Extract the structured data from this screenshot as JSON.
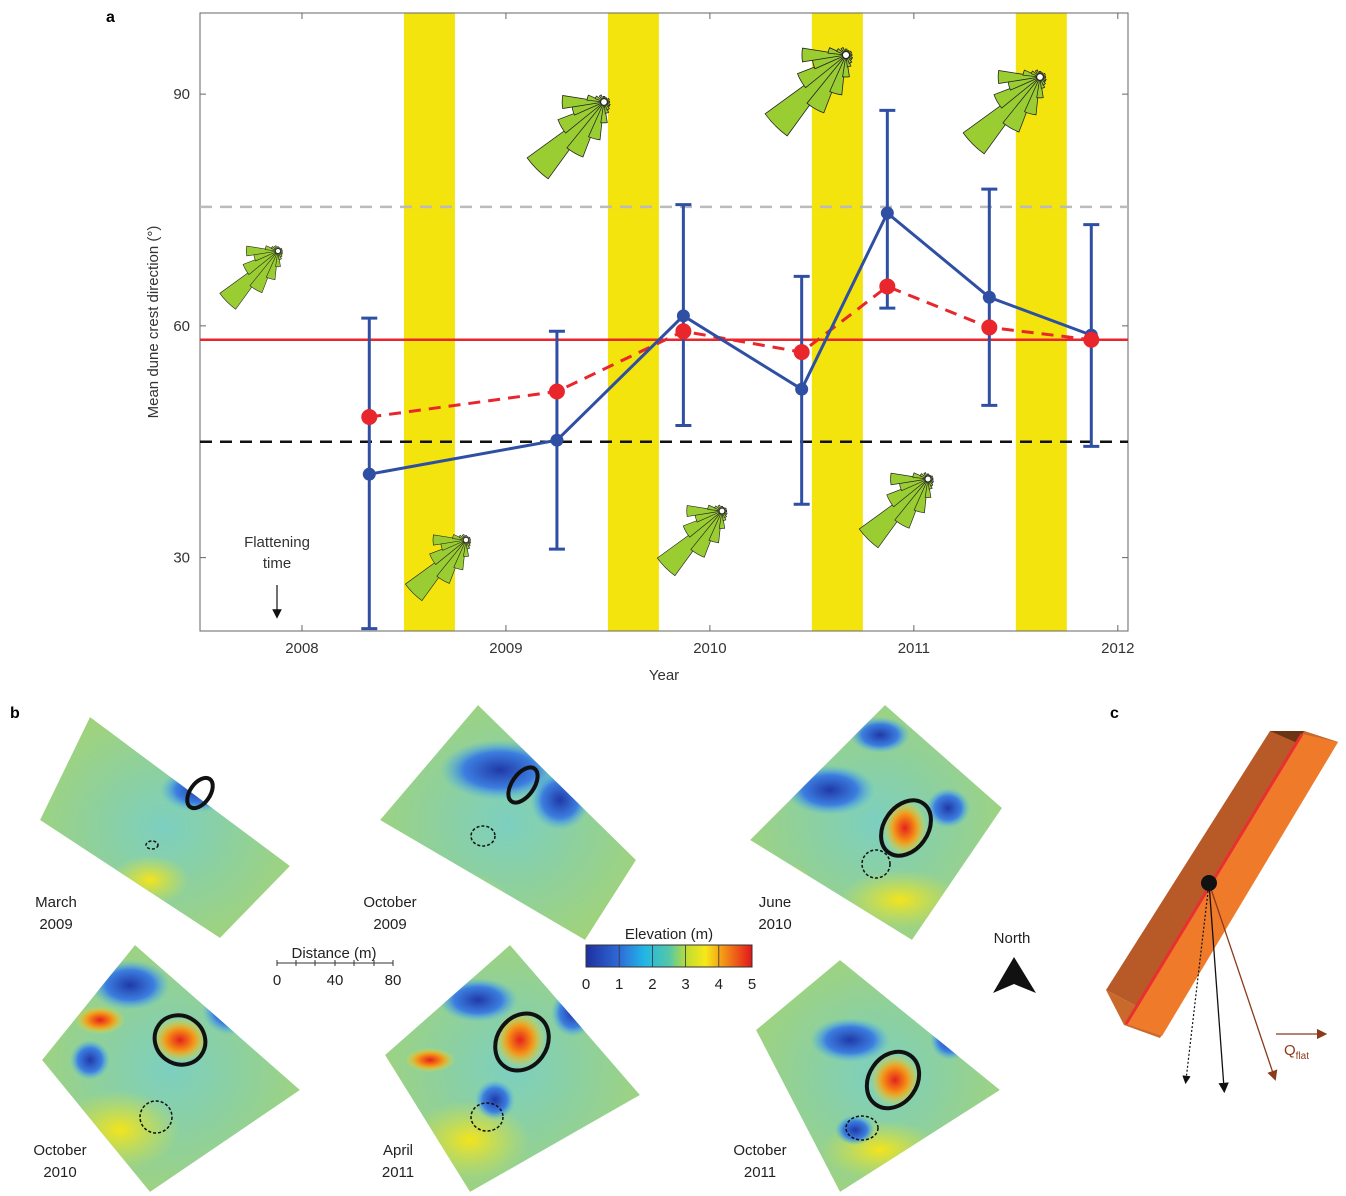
{
  "panel_labels": {
    "a": "a",
    "b": "b",
    "c": "c"
  },
  "chart_data": {
    "type": "line",
    "xlabel": "Year",
    "ylabel": "Mean dune crest direction (°)",
    "xlim": [
      2007.5,
      2012.05
    ],
    "ylim": [
      20.5,
      100.5
    ],
    "x_ticks": [
      "2008",
      "2009",
      "2010",
      "2011",
      "2012"
    ],
    "y_ticks": [
      "30",
      "60",
      "90"
    ],
    "grid": false,
    "series": [
      {
        "style": "solid blue line with error bars",
        "color": "#2e4fa3",
        "x": [
          2008.33,
          2009.25,
          2009.87,
          2010.45,
          2010.87,
          2011.37,
          2011.87
        ],
        "y": [
          40.8,
          45.2,
          61.3,
          51.8,
          74.6,
          63.7,
          58.8
        ],
        "err_low": [
          20.8,
          31.1,
          47.1,
          36.9,
          62.3,
          49.7,
          44.4
        ],
        "err_high": [
          61.0,
          59.3,
          75.7,
          66.4,
          87.9,
          77.7,
          73.1
        ]
      },
      {
        "style": "dashed red line",
        "color": "#e8262c",
        "x": [
          2008.33,
          2009.25,
          2009.87,
          2010.45,
          2010.87,
          2011.37,
          2011.87
        ],
        "y": [
          48.2,
          51.5,
          59.3,
          56.6,
          65.1,
          59.8,
          58.2
        ]
      }
    ],
    "reference_lines": [
      {
        "y": 58.2,
        "style": "solid",
        "color": "#e8262c"
      },
      {
        "y": 45.0,
        "style": "dashed",
        "color": "#111111"
      },
      {
        "y": 75.4,
        "style": "dashed",
        "color": "#bbbbbb"
      }
    ],
    "shaded_bands": [
      [
        2008.5,
        2008.75
      ],
      [
        2009.5,
        2009.75
      ],
      [
        2010.5,
        2010.75
      ],
      [
        2011.5,
        2011.75
      ]
    ],
    "shade_color": "#f2e40c",
    "wind_rose_color": "#9acd32",
    "annotation": "Flattening\ntime"
  },
  "maps": {
    "labels": [
      "March\n2009",
      "October\n2009",
      "June\n2010",
      "October\n2010",
      "April\n2011",
      "October\n2011"
    ],
    "scale_title": "Distance (m)",
    "scale_ticks": [
      "0",
      "40",
      "80"
    ],
    "colorbar_title": "Elevation (m)",
    "colorbar_ticks": [
      "0",
      "1",
      "2",
      "3",
      "4",
      "5"
    ],
    "north_label": "North"
  },
  "panel_c": {
    "flux_label": "Q",
    "flux_subscript": "flat"
  }
}
